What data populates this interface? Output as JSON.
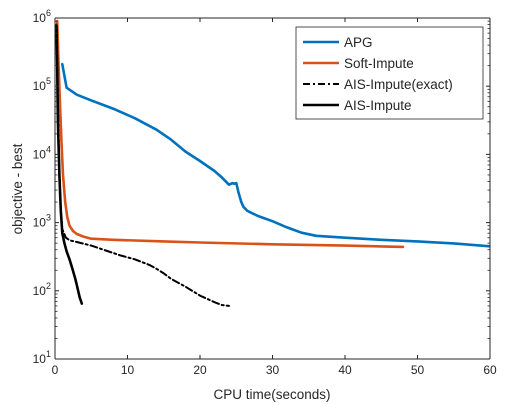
{
  "chart_data": {
    "type": "line",
    "xlabel": "CPU time(seconds)",
    "ylabel": "objective - best",
    "xlim": [
      0,
      60
    ],
    "ylim": [
      10,
      1000000
    ],
    "yscale": "log",
    "grid": false,
    "legend_position": "top-right",
    "x_ticks": [
      0,
      10,
      20,
      30,
      40,
      50,
      60
    ],
    "x_tick_labels": [
      "0",
      "10",
      "20",
      "30",
      "40",
      "50",
      "60"
    ],
    "y_ticks": [
      10,
      100,
      1000,
      10000,
      100000,
      1000000
    ],
    "y_tick_labels": [
      {
        "base": "10",
        "exp": "1"
      },
      {
        "base": "10",
        "exp": "2"
      },
      {
        "base": "10",
        "exp": "3"
      },
      {
        "base": "10",
        "exp": "4"
      },
      {
        "base": "10",
        "exp": "5"
      },
      {
        "base": "10",
        "exp": "6"
      }
    ],
    "series": [
      {
        "name": "APG",
        "color": "#0072bd",
        "dash": "solid",
        "width": 2.6,
        "x": [
          1.0,
          1.6,
          3,
          5,
          8,
          11,
          14,
          16,
          18,
          20,
          22,
          23,
          24,
          24.5,
          24.7,
          25,
          25.3,
          25.7,
          26,
          26.5,
          27,
          28,
          30,
          32,
          34,
          36,
          40,
          45,
          50,
          55,
          60
        ],
        "y": [
          210000,
          95000,
          75000,
          62000,
          47000,
          34000,
          23000,
          16500,
          11000,
          8000,
          5700,
          4600,
          3600,
          3800,
          3700,
          3800,
          2800,
          2000,
          1700,
          1500,
          1400,
          1250,
          1050,
          850,
          710,
          640,
          600,
          560,
          530,
          495,
          450
        ]
      },
      {
        "name": "Soft-Impute",
        "color": "#d95319",
        "dash": "solid",
        "width": 2.6,
        "x": [
          0.3,
          0.5,
          0.7,
          0.9,
          1.1,
          1.4,
          1.7,
          2.0,
          2.5,
          3,
          4,
          5,
          8,
          15,
          20,
          30,
          40,
          48
        ],
        "y": [
          900000,
          200000,
          50000,
          15000,
          5000,
          2000,
          1200,
          900,
          750,
          680,
          620,
          580,
          560,
          530,
          510,
          480,
          460,
          440
        ]
      },
      {
        "name": "AIS-Impute(exact)",
        "color": "#000000",
        "dash": "dashdot",
        "width": 2.0,
        "x": [
          0.2,
          0.4,
          0.6,
          0.8,
          1.0,
          1.5,
          2,
          3,
          5,
          7,
          9,
          11,
          13,
          14,
          15,
          16,
          18,
          20,
          22,
          23,
          24
        ],
        "y": [
          800000,
          60000,
          5000,
          1500,
          800,
          600,
          550,
          520,
          460,
          390,
          330,
          290,
          240,
          210,
          180,
          150,
          115,
          85,
          68,
          62,
          60
        ]
      },
      {
        "name": "AIS-Impute",
        "color": "#000000",
        "dash": "solid",
        "width": 2.6,
        "x": [
          0.2,
          0.3,
          0.4,
          0.6,
          0.8,
          1.0,
          1.3,
          1.6,
          2.0,
          2.4,
          2.8,
          3.1,
          3.4,
          3.7
        ],
        "y": [
          750000,
          200000,
          30000,
          5000,
          1500,
          700,
          500,
          380,
          290,
          210,
          150,
          110,
          80,
          65
        ]
      }
    ]
  }
}
